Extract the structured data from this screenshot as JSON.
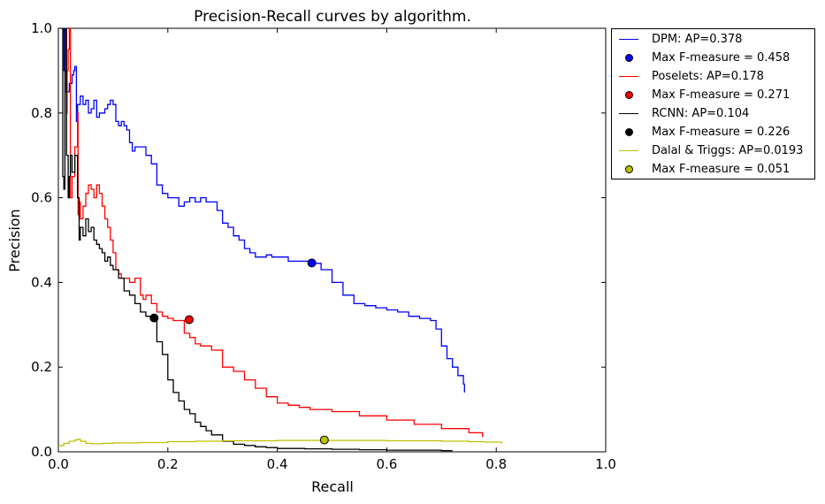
{
  "chart_data": {
    "type": "line",
    "title": "Precision-Recall curves by algorithm.",
    "xlabel": "Recall",
    "ylabel": "Precision",
    "xlim": [
      0.0,
      1.0
    ],
    "ylim": [
      0.0,
      1.0
    ],
    "xticks": [
      "0.0",
      "0.2",
      "0.4",
      "0.6",
      "0.8",
      "1.0"
    ],
    "yticks": [
      "0.0",
      "0.2",
      "0.4",
      "0.6",
      "0.8",
      "1.0"
    ],
    "grid": false,
    "legend_position": "outside-right-top",
    "series": [
      {
        "name": "DPM: AP=0.378",
        "color": "#0000ff",
        "x": [
          0.005,
          0.01,
          0.015,
          0.02,
          0.025,
          0.028,
          0.03,
          0.033,
          0.035,
          0.04,
          0.045,
          0.05,
          0.055,
          0.06,
          0.065,
          0.07,
          0.075,
          0.08,
          0.085,
          0.09,
          0.095,
          0.1,
          0.105,
          0.11,
          0.115,
          0.12,
          0.125,
          0.13,
          0.135,
          0.14,
          0.15,
          0.16,
          0.17,
          0.18,
          0.19,
          0.2,
          0.21,
          0.22,
          0.23,
          0.24,
          0.25,
          0.26,
          0.27,
          0.28,
          0.29,
          0.3,
          0.31,
          0.32,
          0.33,
          0.34,
          0.35,
          0.36,
          0.37,
          0.38,
          0.39,
          0.4,
          0.42,
          0.44,
          0.46,
          0.48,
          0.5,
          0.52,
          0.54,
          0.56,
          0.58,
          0.6,
          0.62,
          0.64,
          0.66,
          0.68,
          0.69,
          0.7,
          0.71,
          0.72,
          0.73,
          0.74,
          0.742
        ],
        "y": [
          1.0,
          0.9,
          0.85,
          0.87,
          0.89,
          0.9,
          0.91,
          0.78,
          0.82,
          0.84,
          0.82,
          0.83,
          0.8,
          0.81,
          0.83,
          0.79,
          0.8,
          0.8,
          0.81,
          0.82,
          0.83,
          0.82,
          0.78,
          0.77,
          0.78,
          0.77,
          0.76,
          0.73,
          0.71,
          0.72,
          0.72,
          0.7,
          0.68,
          0.63,
          0.61,
          0.6,
          0.6,
          0.58,
          0.59,
          0.6,
          0.59,
          0.6,
          0.59,
          0.59,
          0.57,
          0.54,
          0.53,
          0.51,
          0.5,
          0.48,
          0.47,
          0.46,
          0.46,
          0.465,
          0.46,
          0.46,
          0.45,
          0.45,
          0.445,
          0.43,
          0.4,
          0.37,
          0.35,
          0.345,
          0.34,
          0.335,
          0.33,
          0.32,
          0.315,
          0.31,
          0.29,
          0.25,
          0.22,
          0.2,
          0.18,
          0.16,
          0.14
        ]
      },
      {
        "name": "Poselets: AP=0.178",
        "color": "#ff0000",
        "x": [
          0.012,
          0.014,
          0.015,
          0.016,
          0.018,
          0.02,
          0.022,
          0.025,
          0.03,
          0.035,
          0.036,
          0.038,
          0.04,
          0.045,
          0.05,
          0.055,
          0.06,
          0.065,
          0.07,
          0.075,
          0.08,
          0.085,
          0.09,
          0.095,
          0.1,
          0.105,
          0.11,
          0.115,
          0.12,
          0.13,
          0.14,
          0.15,
          0.155,
          0.16,
          0.17,
          0.18,
          0.19,
          0.2,
          0.21,
          0.22,
          0.23,
          0.24,
          0.25,
          0.26,
          0.28,
          0.3,
          0.32,
          0.34,
          0.36,
          0.38,
          0.4,
          0.42,
          0.44,
          0.46,
          0.48,
          0.5,
          0.55,
          0.6,
          0.65,
          0.7,
          0.75,
          0.775
        ],
        "y": [
          1.0,
          0.85,
          0.8,
          0.9,
          0.95,
          1.0,
          0.6,
          0.65,
          0.72,
          0.8,
          0.56,
          0.59,
          0.55,
          0.58,
          0.61,
          0.63,
          0.62,
          0.6,
          0.63,
          0.61,
          0.58,
          0.55,
          0.53,
          0.5,
          0.47,
          0.43,
          0.42,
          0.41,
          0.41,
          0.4,
          0.41,
          0.37,
          0.36,
          0.37,
          0.35,
          0.33,
          0.32,
          0.315,
          0.31,
          0.31,
          0.28,
          0.27,
          0.255,
          0.25,
          0.24,
          0.2,
          0.19,
          0.17,
          0.15,
          0.13,
          0.115,
          0.11,
          0.105,
          0.1,
          0.1,
          0.095,
          0.085,
          0.075,
          0.065,
          0.055,
          0.045,
          0.035
        ]
      },
      {
        "name": "RCNN: AP=0.104",
        "color": "#000000",
        "x": [
          0.005,
          0.008,
          0.01,
          0.012,
          0.015,
          0.018,
          0.02,
          0.022,
          0.025,
          0.03,
          0.035,
          0.038,
          0.04,
          0.045,
          0.05,
          0.055,
          0.06,
          0.065,
          0.07,
          0.075,
          0.08,
          0.085,
          0.09,
          0.095,
          0.1,
          0.11,
          0.12,
          0.13,
          0.14,
          0.15,
          0.16,
          0.17,
          0.175,
          0.18,
          0.19,
          0.2,
          0.21,
          0.22,
          0.23,
          0.24,
          0.25,
          0.26,
          0.27,
          0.28,
          0.3,
          0.32,
          0.34,
          0.36,
          0.38,
          0.4,
          0.45,
          0.5,
          0.55,
          0.6,
          0.65,
          0.7,
          0.72
        ],
        "y": [
          1.0,
          0.65,
          0.62,
          1.0,
          0.7,
          0.6,
          0.65,
          0.7,
          0.66,
          0.7,
          0.6,
          0.5,
          0.53,
          0.51,
          0.55,
          0.52,
          0.53,
          0.5,
          0.49,
          0.48,
          0.47,
          0.45,
          0.46,
          0.44,
          0.43,
          0.41,
          0.38,
          0.37,
          0.35,
          0.33,
          0.32,
          0.315,
          0.31,
          0.26,
          0.23,
          0.17,
          0.14,
          0.12,
          0.1,
          0.09,
          0.07,
          0.06,
          0.05,
          0.04,
          0.025,
          0.018,
          0.015,
          0.012,
          0.01,
          0.008,
          0.007,
          0.006,
          0.005,
          0.004,
          0.004,
          0.003,
          0.003
        ]
      },
      {
        "name": "Dalal & Triggs: AP=0.0193",
        "color": "#bfbf00",
        "x": [
          0.0,
          0.01,
          0.02,
          0.03,
          0.035,
          0.04,
          0.05,
          0.06,
          0.08,
          0.1,
          0.15,
          0.2,
          0.25,
          0.3,
          0.35,
          0.4,
          0.45,
          0.5,
          0.55,
          0.6,
          0.65,
          0.7,
          0.75,
          0.78,
          0.81
        ],
        "y": [
          0.015,
          0.02,
          0.025,
          0.028,
          0.03,
          0.025,
          0.02,
          0.019,
          0.02,
          0.021,
          0.022,
          0.024,
          0.025,
          0.026,
          0.026,
          0.027,
          0.027,
          0.027,
          0.027,
          0.026,
          0.026,
          0.025,
          0.024,
          0.023,
          0.02
        ]
      }
    ],
    "markers": [
      {
        "name": "Max F-measure = 0.458",
        "color": "#0000ff",
        "x": 0.463,
        "y": 0.446
      },
      {
        "name": "Max F-measure = 0.271",
        "color": "#ff0000",
        "x": 0.239,
        "y": 0.312
      },
      {
        "name": "Max F-measure = 0.226",
        "color": "#000000",
        "x": 0.175,
        "y": 0.316
      },
      {
        "name": "Max F-measure = 0.051",
        "color": "#bfbf00",
        "x": 0.486,
        "y": 0.028
      }
    ]
  },
  "legend": {
    "entries": [
      {
        "kind": "line",
        "label": "DPM: AP=0.378",
        "color": "#0000ff"
      },
      {
        "kind": "dot",
        "label": "Max F-measure = 0.458",
        "color": "#0000ff"
      },
      {
        "kind": "line",
        "label": "Poselets: AP=0.178",
        "color": "#ff0000"
      },
      {
        "kind": "dot",
        "label": "Max F-measure = 0.271",
        "color": "#ff0000"
      },
      {
        "kind": "line",
        "label": "RCNN: AP=0.104",
        "color": "#000000"
      },
      {
        "kind": "dot",
        "label": "Max F-measure = 0.226",
        "color": "#000000"
      },
      {
        "kind": "line",
        "label": "Dalal & Triggs: AP=0.0193",
        "color": "#bfbf00"
      },
      {
        "kind": "dot",
        "label": "Max F-measure = 0.051",
        "color": "#bfbf00"
      }
    ]
  }
}
